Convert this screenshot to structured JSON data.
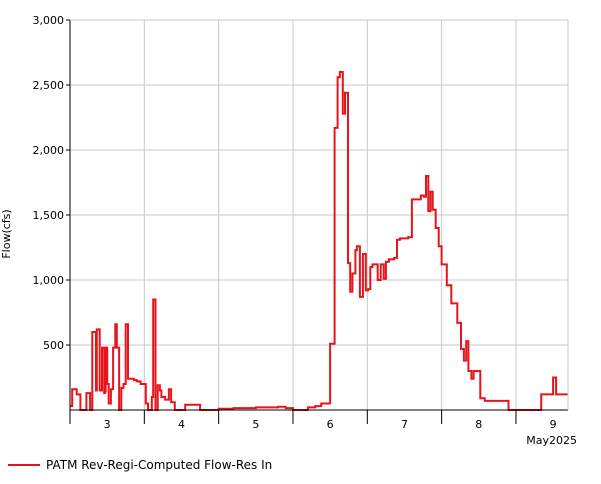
{
  "chart_data": {
    "type": "line",
    "ylabel": "Flow(cfs)",
    "ylim": [
      0,
      3000
    ],
    "y_ticks": [
      500,
      1000,
      1500,
      2000,
      2500,
      3000
    ],
    "y_tick_labels": [
      "500",
      "1,000",
      "1,500",
      "2,000",
      "2,500",
      "3,000"
    ],
    "x_range_days": [
      2.5,
      9.2
    ],
    "x_tick_labels": [
      "3",
      "4",
      "5",
      "6",
      "7",
      "8",
      "9"
    ],
    "x_period_label": "May2025",
    "grid": true,
    "legend_position": "bottom-left",
    "colors": {
      "series": "#e8141c",
      "grid": "#c8c8c8",
      "axis": "#000000"
    },
    "series": [
      {
        "name": "PATM Rev-Regi-Computed Flow-Res In",
        "step": true,
        "points": [
          [
            2.5,
            30
          ],
          [
            2.53,
            160
          ],
          [
            2.59,
            120
          ],
          [
            2.64,
            0
          ],
          [
            2.7,
            0
          ],
          [
            2.72,
            130
          ],
          [
            2.77,
            0
          ],
          [
            2.8,
            600
          ],
          [
            2.85,
            150
          ],
          [
            2.86,
            620
          ],
          [
            2.9,
            150
          ],
          [
            2.93,
            480
          ],
          [
            2.96,
            130
          ],
          [
            2.97,
            140
          ],
          [
            2.98,
            480
          ],
          [
            3.0,
            200
          ],
          [
            3.02,
            50
          ],
          [
            3.05,
            160
          ],
          [
            3.08,
            480
          ],
          [
            3.11,
            660
          ],
          [
            3.13,
            480
          ],
          [
            3.16,
            0
          ],
          [
            3.19,
            170
          ],
          [
            3.22,
            200
          ],
          [
            3.25,
            660
          ],
          [
            3.28,
            240
          ],
          [
            3.36,
            230
          ],
          [
            3.4,
            220
          ],
          [
            3.45,
            200
          ],
          [
            3.52,
            50
          ],
          [
            3.55,
            0
          ],
          [
            3.6,
            100
          ],
          [
            3.62,
            850
          ],
          [
            3.65,
            0
          ],
          [
            3.68,
            190
          ],
          [
            3.71,
            150
          ],
          [
            3.73,
            100
          ],
          [
            3.78,
            80
          ],
          [
            3.83,
            160
          ],
          [
            3.86,
            60
          ],
          [
            3.91,
            0
          ],
          [
            3.95,
            0
          ],
          [
            4.05,
            40
          ],
          [
            4.15,
            40
          ],
          [
            4.25,
            0
          ],
          [
            4.4,
            0
          ],
          [
            4.5,
            10
          ],
          [
            4.7,
            15
          ],
          [
            5.0,
            20
          ],
          [
            5.3,
            25
          ],
          [
            5.4,
            15
          ],
          [
            5.5,
            0
          ],
          [
            5.7,
            20
          ],
          [
            5.8,
            30
          ],
          [
            5.88,
            50
          ],
          [
            6.0,
            510
          ],
          [
            6.06,
            2170
          ],
          [
            6.1,
            2560
          ],
          [
            6.13,
            2600
          ],
          [
            6.17,
            2280
          ],
          [
            6.2,
            2440
          ],
          [
            6.24,
            1130
          ],
          [
            6.27,
            910
          ],
          [
            6.3,
            1050
          ],
          [
            6.34,
            1230
          ],
          [
            6.36,
            1260
          ],
          [
            6.4,
            870
          ],
          [
            6.44,
            1200
          ],
          [
            6.48,
            920
          ],
          [
            6.51,
            930
          ],
          [
            6.54,
            1100
          ],
          [
            6.57,
            1120
          ],
          [
            6.64,
            1000
          ],
          [
            6.68,
            1120
          ],
          [
            6.72,
            1010
          ],
          [
            6.75,
            1140
          ],
          [
            6.79,
            1160
          ],
          [
            6.86,
            1170
          ],
          [
            6.9,
            1310
          ],
          [
            6.94,
            1320
          ],
          [
            7.05,
            1330
          ],
          [
            7.1,
            1620
          ],
          [
            7.22,
            1650
          ],
          [
            7.26,
            1640
          ],
          [
            7.29,
            1800
          ],
          [
            7.32,
            1530
          ],
          [
            7.35,
            1680
          ],
          [
            7.38,
            1540
          ],
          [
            7.42,
            1400
          ],
          [
            7.46,
            1260
          ],
          [
            7.5,
            1120
          ],
          [
            7.57,
            960
          ],
          [
            7.63,
            820
          ],
          [
            7.71,
            670
          ],
          [
            7.76,
            470
          ],
          [
            7.8,
            380
          ],
          [
            7.83,
            530
          ],
          [
            7.86,
            300
          ],
          [
            7.9,
            240
          ],
          [
            7.93,
            300
          ],
          [
            8.02,
            90
          ],
          [
            8.08,
            70
          ],
          [
            8.32,
            70
          ],
          [
            8.4,
            0
          ],
          [
            8.5,
            0
          ],
          [
            8.65,
            0
          ],
          [
            8.72,
            0
          ],
          [
            8.84,
            120
          ],
          [
            9.0,
            250
          ],
          [
            9.04,
            120
          ],
          [
            9.07,
            120
          ]
        ]
      }
    ]
  }
}
